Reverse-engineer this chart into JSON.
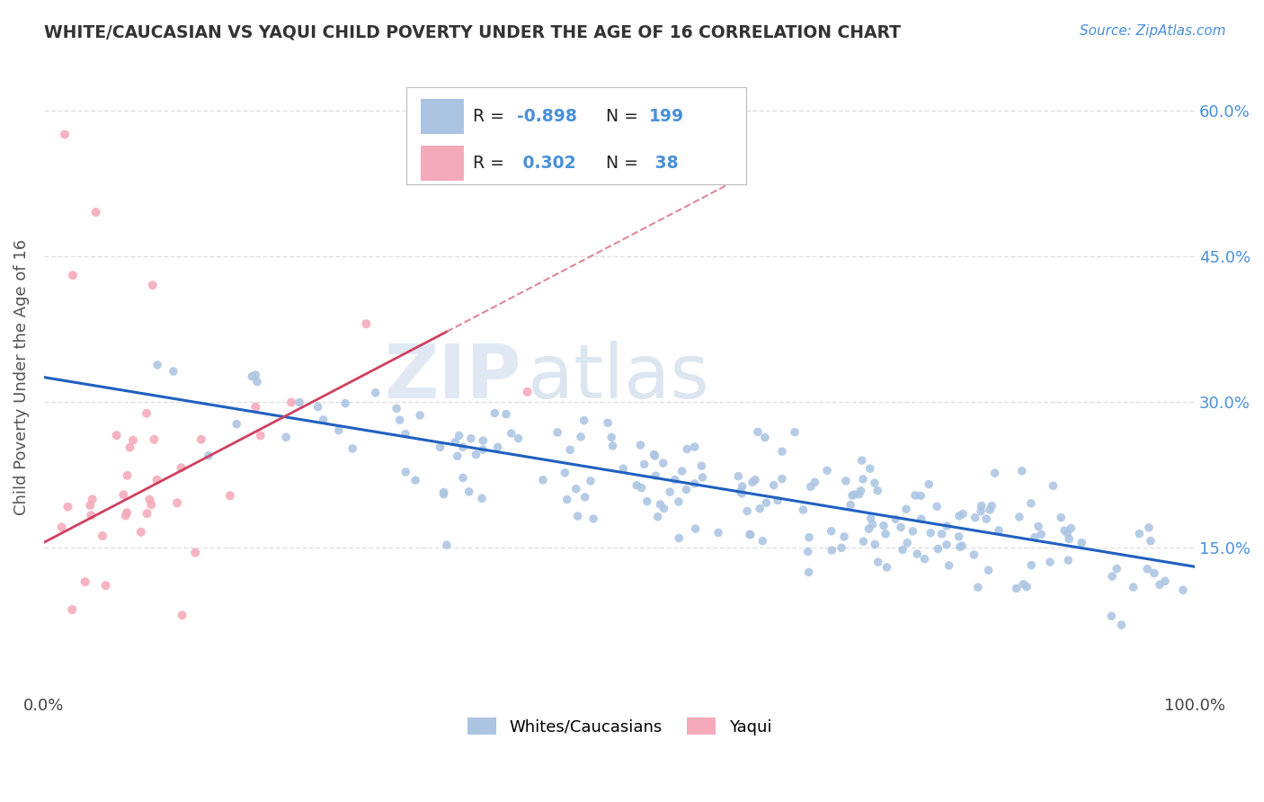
{
  "title": "WHITE/CAUCASIAN VS YAQUI CHILD POVERTY UNDER THE AGE OF 16 CORRELATION CHART",
  "source": "Source: ZipAtlas.com",
  "ylabel": "Child Poverty Under the Age of 16",
  "xlim": [
    0,
    1.0
  ],
  "ylim": [
    0,
    0.65
  ],
  "yticks": [
    0.15,
    0.3,
    0.45,
    0.6
  ],
  "ytick_labels": [
    "15.0%",
    "30.0%",
    "45.0%",
    "60.0%"
  ],
  "xticks": [
    0.0,
    1.0
  ],
  "xtick_labels": [
    "0.0%",
    "100.0%"
  ],
  "watermark_zip": "ZIP",
  "watermark_atlas": "atlas",
  "blue_color": "#aac4e2",
  "pink_color": "#f5aabb",
  "blue_line_color": "#2060c0",
  "pink_line_color": "#d04060",
  "pink_dash_color": "#e08898",
  "grid_color": "#dddddd",
  "background_color": "#ffffff",
  "legend_labels": [
    "Whites/Caucasians",
    "Yaqui"
  ],
  "blue_r": "-0.898",
  "blue_n": "199",
  "pink_r": "0.302",
  "pink_n": "38",
  "blue_slope": -0.195,
  "blue_intercept": 0.325,
  "blue_noise": 0.03,
  "pink_slope": 0.62,
  "pink_intercept": 0.155,
  "pink_noise": 0.065,
  "n_blue": 199,
  "n_pink": 38,
  "blue_seed": 42,
  "pink_seed": 17
}
